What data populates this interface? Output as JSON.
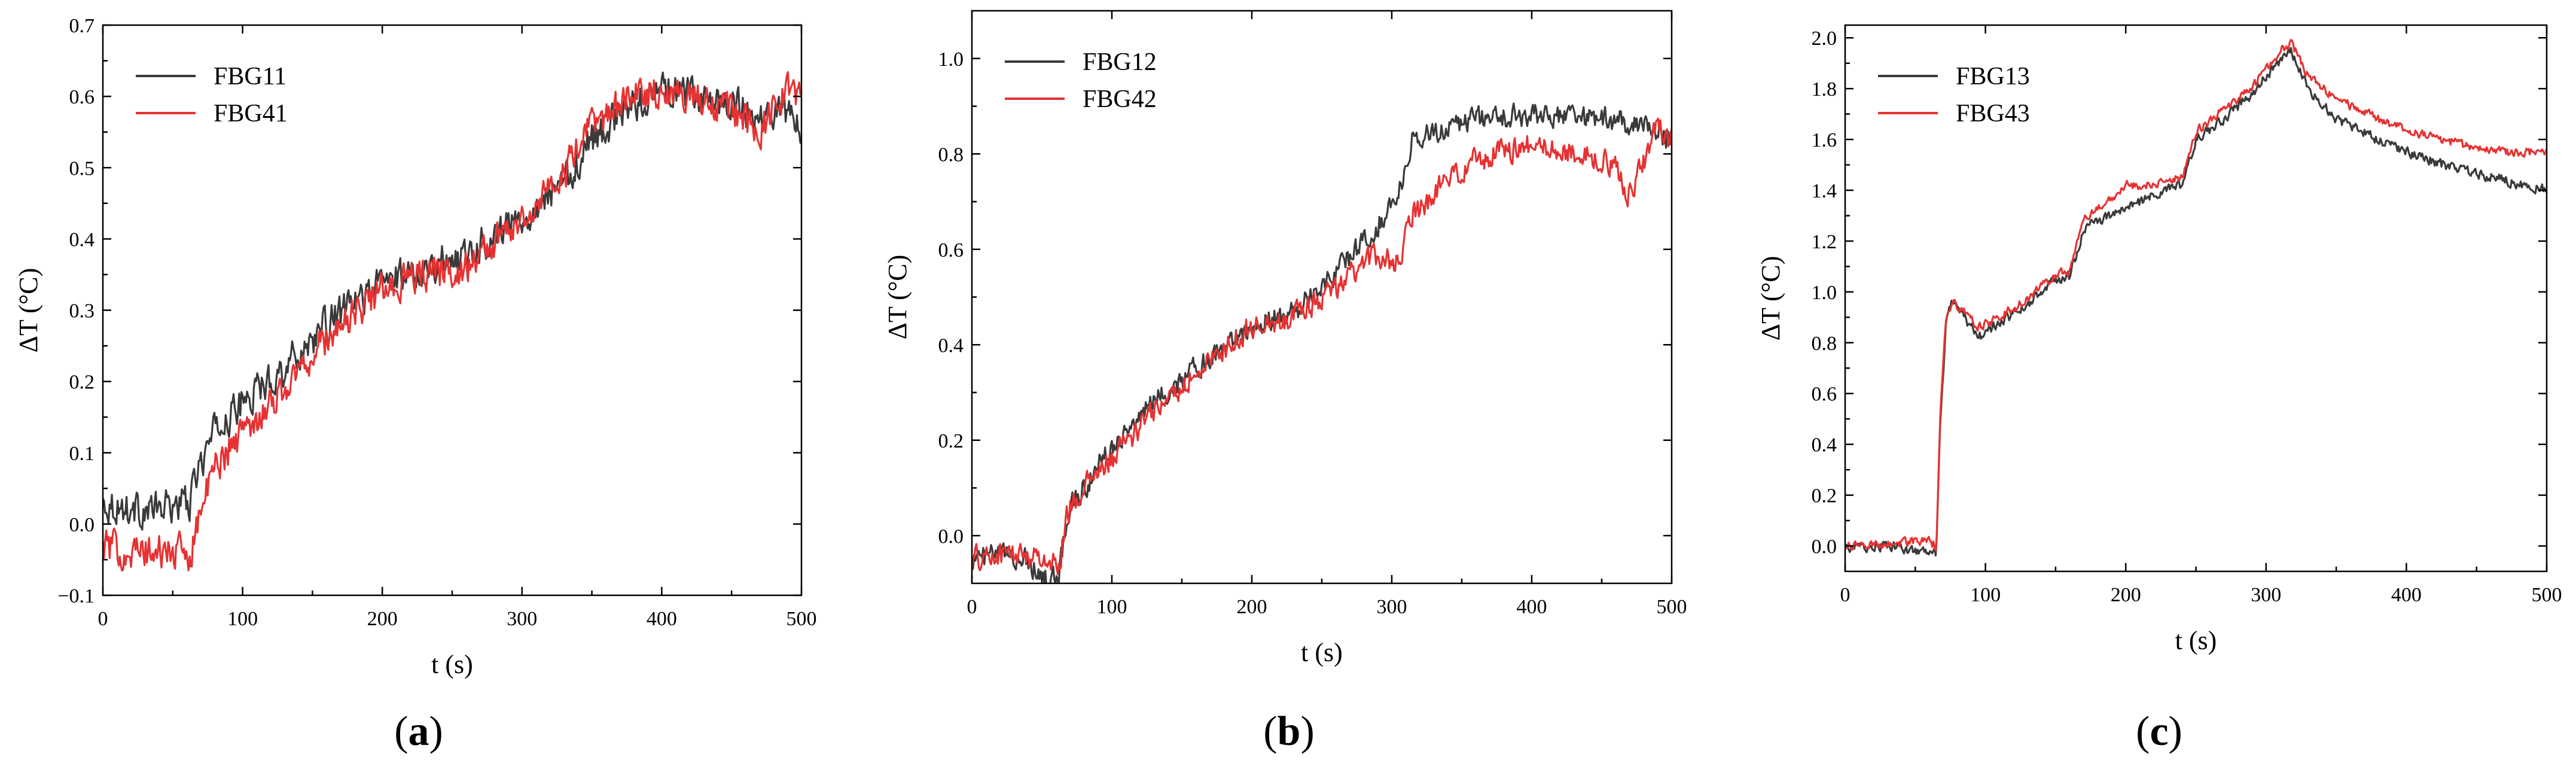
{
  "chart_data": [
    {
      "type": "line",
      "panel": "a",
      "caption": "a",
      "xlabel": "t (s)",
      "ylabel": "ΔT (°C)",
      "xlim": [
        0,
        500
      ],
      "ylim": [
        -0.1,
        0.7
      ],
      "xticks": [
        0,
        100,
        200,
        300,
        400,
        500
      ],
      "xtick_labels": [
        "0",
        "100",
        "200",
        "300",
        "400",
        "500"
      ],
      "yticks": [
        -0.1,
        0.0,
        0.1,
        0.2,
        0.3,
        0.4,
        0.5,
        0.6,
        0.7
      ],
      "ytick_labels": [
        "−0.1",
        "0.0",
        "0.1",
        "0.2",
        "0.3",
        "0.4",
        "0.5",
        "0.6",
        "0.7"
      ],
      "legend_position": "top-left",
      "series": [
        {
          "name": "FBG11",
          "color": "#3a3a3a",
          "x": [
            0,
            20,
            40,
            55,
            63,
            67,
            80,
            100,
            130,
            160,
            200,
            230,
            260,
            300,
            330,
            350,
            380,
            400,
            420,
            450,
            470,
            490,
            500
          ],
          "y": [
            0.03,
            0.02,
            0.02,
            0.03,
            0.03,
            0.07,
            0.13,
            0.17,
            0.22,
            0.28,
            0.34,
            0.36,
            0.38,
            0.43,
            0.48,
            0.54,
            0.59,
            0.61,
            0.6,
            0.59,
            0.57,
            0.58,
            0.55
          ],
          "noise": 0.022
        },
        {
          "name": "FBG41",
          "color": "#e63232",
          "x": [
            0,
            20,
            40,
            55,
            63,
            67,
            80,
            100,
            130,
            160,
            200,
            230,
            260,
            300,
            330,
            350,
            380,
            400,
            420,
            450,
            470,
            490,
            500
          ],
          "y": [
            -0.03,
            -0.04,
            -0.04,
            -0.04,
            -0.04,
            0.0,
            0.08,
            0.13,
            0.19,
            0.26,
            0.33,
            0.35,
            0.36,
            0.43,
            0.49,
            0.56,
            0.6,
            0.61,
            0.6,
            0.58,
            0.55,
            0.61,
            0.6
          ],
          "noise": 0.022
        }
      ]
    },
    {
      "type": "line",
      "panel": "b",
      "caption": "b",
      "xlabel": "t (s)",
      "ylabel": "ΔT (°C)",
      "xlim": [
        0,
        500
      ],
      "ylim": [
        -0.1,
        1.1
      ],
      "xticks": [
        0,
        100,
        200,
        300,
        400,
        500
      ],
      "xtick_labels": [
        "0",
        "100",
        "200",
        "300",
        "400",
        "500"
      ],
      "yticks": [
        0.0,
        0.2,
        0.4,
        0.6,
        0.8,
        1.0
      ],
      "ytick_labels": [
        "0.0",
        "0.2",
        "0.4",
        "0.6",
        "0.8",
        "1.0"
      ],
      "legend_position": "top-left",
      "series": [
        {
          "name": "FBG12",
          "color": "#3a3a3a",
          "x": [
            0,
            20,
            40,
            52,
            62,
            68,
            80,
            100,
            130,
            160,
            200,
            230,
            260,
            290,
            305,
            315,
            340,
            370,
            400,
            430,
            460,
            480,
            500
          ],
          "y": [
            -0.05,
            -0.04,
            -0.05,
            -0.09,
            -0.09,
            0.05,
            0.1,
            0.19,
            0.28,
            0.35,
            0.44,
            0.47,
            0.55,
            0.65,
            0.72,
            0.83,
            0.86,
            0.88,
            0.88,
            0.88,
            0.87,
            0.86,
            0.83
          ],
          "noise": 0.022
        },
        {
          "name": "FBG42",
          "color": "#e63232",
          "x": [
            0,
            20,
            40,
            55,
            62,
            68,
            80,
            100,
            130,
            160,
            200,
            230,
            260,
            290,
            305,
            315,
            340,
            370,
            400,
            430,
            460,
            470,
            480,
            490,
            500
          ],
          "y": [
            -0.05,
            -0.04,
            -0.04,
            -0.05,
            -0.07,
            0.05,
            0.1,
            0.16,
            0.26,
            0.34,
            0.44,
            0.46,
            0.52,
            0.59,
            0.57,
            0.67,
            0.75,
            0.8,
            0.82,
            0.8,
            0.78,
            0.71,
            0.78,
            0.86,
            0.82
          ],
          "noise": 0.024
        }
      ]
    },
    {
      "type": "line",
      "panel": "c",
      "caption": "c",
      "xlabel": "t (s)",
      "ylabel": "ΔT (°C)",
      "xlim": [
        0,
        500
      ],
      "ylim": [
        -0.1,
        2.05
      ],
      "xticks": [
        0,
        100,
        200,
        300,
        400,
        500
      ],
      "xtick_labels": [
        "0",
        "100",
        "200",
        "300",
        "400",
        "500"
      ],
      "yticks": [
        0.0,
        0.2,
        0.4,
        0.6,
        0.8,
        1.0,
        1.2,
        1.4,
        1.6,
        1.8,
        2.0
      ],
      "ytick_labels": [
        "0.0",
        "0.2",
        "0.4",
        "0.6",
        "0.8",
        "1.0",
        "1.2",
        "1.4",
        "1.6",
        "1.8",
        "2.0"
      ],
      "legend_position": "top-left",
      "series": [
        {
          "name": "FBG13",
          "color": "#3a3a3a",
          "x": [
            0,
            30,
            60,
            65,
            68,
            72,
            76,
            85,
            95,
            110,
            130,
            150,
            160,
            170,
            200,
            220,
            240,
            250,
            270,
            290,
            300,
            310,
            318,
            330,
            350,
            380,
            410,
            440,
            470,
            500
          ],
          "y": [
            -0.01,
            0.0,
            -0.03,
            -0.03,
            0.5,
            0.88,
            0.95,
            0.9,
            0.82,
            0.88,
            0.95,
            1.05,
            1.06,
            1.25,
            1.33,
            1.38,
            1.42,
            1.6,
            1.68,
            1.78,
            1.85,
            1.9,
            1.95,
            1.8,
            1.68,
            1.6,
            1.53,
            1.48,
            1.44,
            1.4
          ],
          "noise": 0.018
        },
        {
          "name": "FBG43",
          "color": "#e63232",
          "x": [
            0,
            30,
            60,
            65,
            68,
            72,
            76,
            85,
            95,
            110,
            130,
            150,
            160,
            170,
            200,
            220,
            240,
            250,
            270,
            290,
            300,
            310,
            318,
            330,
            350,
            380,
            410,
            440,
            470,
            500
          ],
          "y": [
            0.0,
            0.01,
            0.02,
            0.0,
            0.55,
            0.9,
            0.96,
            0.92,
            0.86,
            0.9,
            0.97,
            1.07,
            1.08,
            1.28,
            1.42,
            1.42,
            1.45,
            1.63,
            1.72,
            1.8,
            1.88,
            1.95,
            1.98,
            1.85,
            1.76,
            1.68,
            1.62,
            1.58,
            1.55,
            1.55
          ],
          "noise": 0.016
        }
      ]
    }
  ]
}
